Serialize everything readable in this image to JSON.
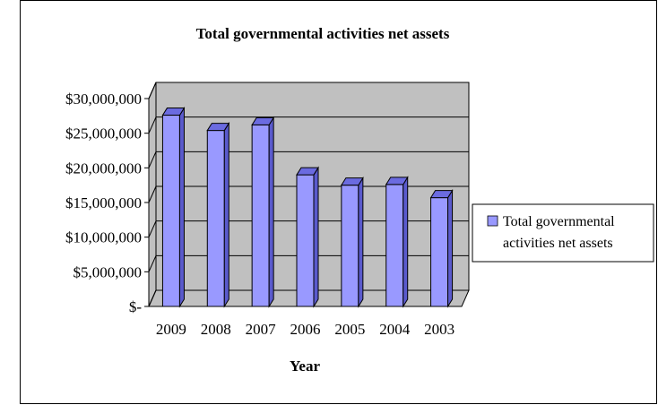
{
  "chart_data": {
    "type": "bar",
    "title": "Total governmental activities net assets",
    "xlabel": "Year",
    "ylabel": "",
    "categories": [
      "2009",
      "2008",
      "2007",
      "2006",
      "2005",
      "2004",
      "2003"
    ],
    "series": [
      {
        "name": "Total governmental activities net assets",
        "values": [
          27600000,
          25400000,
          26200000,
          19000000,
          17500000,
          17600000,
          15700000
        ]
      }
    ],
    "ylim": [
      0,
      30000000
    ],
    "yticks": [
      "$-",
      "$5,000,000",
      "$10,000,000",
      "$15,000,000",
      "$20,000,000",
      "$25,000,000",
      "$30,000,000"
    ],
    "grid": true,
    "legend": "right",
    "colors": {
      "bar_front": "#9999ff",
      "bar_side": "#5a5acc",
      "bar_top": "#6b6be0",
      "plot_wall": "#c0c0c0"
    }
  }
}
